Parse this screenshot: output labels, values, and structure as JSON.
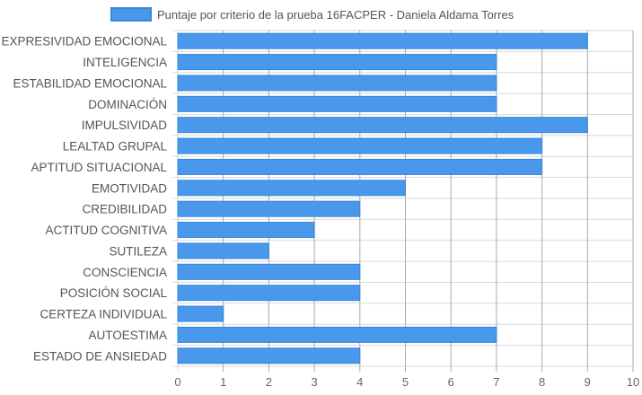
{
  "chart_data": {
    "type": "bar",
    "orientation": "horizontal",
    "categories": [
      "EXPRESIVIDAD EMOCIONAL",
      "INTELIGENCIA",
      "ESTABILIDAD EMOCIONAL",
      "DOMINACIÓN",
      "IMPULSIVIDAD",
      "LEALTAD GRUPAL",
      "APTITUD SITUACIONAL",
      "EMOTIVIDAD",
      "CREDIBILIDAD",
      "ACTITUD COGNITIVA",
      "SUTILEZA",
      "CONSCIENCIA",
      "POSICIÓN SOCIAL",
      "CERTEZA INDIVIDUAL",
      "AUTOESTIMA",
      "ESTADO DE ANSIEDAD"
    ],
    "series": [
      {
        "name": "Puntaje por criterio de la prueba 16FACPER - Daniela Aldama Torres",
        "values": [
          9,
          7,
          7,
          7,
          9,
          8,
          8,
          5,
          4,
          3,
          2,
          4,
          4,
          1,
          7,
          4
        ]
      }
    ],
    "xlim": [
      0,
      10
    ],
    "x_ticks": [
      "0",
      "1",
      "2",
      "3",
      "4",
      "5",
      "6",
      "7",
      "8",
      "9",
      "10"
    ],
    "grid": true,
    "legend_position": "top",
    "colors": {
      "bar_fill": "#4a98eb",
      "bar_border": "#3a86d6",
      "grid": "#d9d9d9",
      "grid_major": "#aaaaaa"
    }
  }
}
